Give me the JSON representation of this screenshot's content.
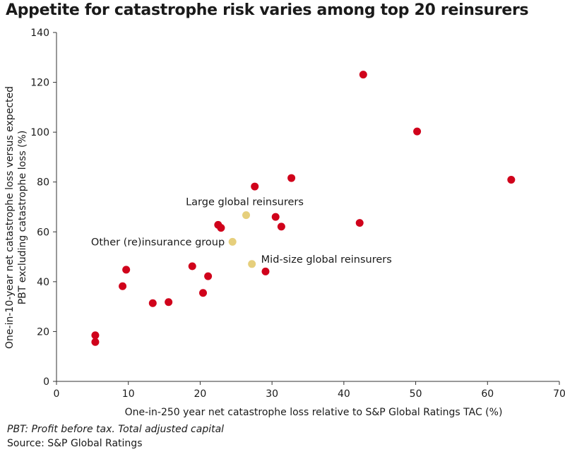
{
  "chart_data": {
    "type": "scatter",
    "title": "Appetite for catastrophe risk varies among top 20 reinsurers",
    "xlabel": "One-in-250 year net catastrophe loss relative to S&P Global Ratings TAC (%)",
    "ylabel_lines": [
      "One-in-10-year net catastrophe loss versus expected",
      "PBT excluding catastrophe loss (%)"
    ],
    "xlim": [
      0,
      70
    ],
    "ylim": [
      0,
      140
    ],
    "xticks": [
      0,
      10,
      20,
      30,
      40,
      50,
      60,
      70
    ],
    "yticks": [
      0,
      20,
      40,
      60,
      80,
      100,
      120,
      140
    ],
    "grid": false,
    "colors": {
      "reinsurer": "#d0021b",
      "group": "#e6cf7c"
    },
    "series": [
      {
        "color_key": "reinsurer",
        "points": [
          [
            5.4,
            18.5
          ],
          [
            5.4,
            15.8
          ],
          [
            9.2,
            38.2
          ],
          [
            9.7,
            44.8
          ],
          [
            13.4,
            31.4
          ],
          [
            15.6,
            31.8
          ],
          [
            18.9,
            46.2
          ],
          [
            20.4,
            35.5
          ],
          [
            21.1,
            42.2
          ],
          [
            22.5,
            62.8
          ],
          [
            22.9,
            61.6
          ],
          [
            27.6,
            78.2
          ],
          [
            29.1,
            44.1
          ],
          [
            30.5,
            66.0
          ],
          [
            31.3,
            62.1
          ],
          [
            32.7,
            81.6
          ],
          [
            42.2,
            63.6
          ],
          [
            42.7,
            123.1
          ],
          [
            50.2,
            100.3
          ],
          [
            63.3,
            80.9
          ]
        ]
      },
      {
        "color_key": "group",
        "points": [
          [
            26.4,
            66.7
          ],
          [
            24.5,
            56.0
          ],
          [
            27.2,
            47.1
          ]
        ]
      }
    ],
    "annotations": [
      {
        "text": "Large global reinsurers",
        "x": 26.4,
        "y": 66.7,
        "placement": "above"
      },
      {
        "text": "Other (re)insurance group",
        "x": 24.5,
        "y": 56.0,
        "placement": "left"
      },
      {
        "text": "Mid-size global reinsurers",
        "x": 27.2,
        "y": 47.1,
        "placement": "right"
      }
    ]
  },
  "footnote": "PBT: Profit before tax. Total adjusted capital",
  "source": "Source: S&P Global Ratings"
}
